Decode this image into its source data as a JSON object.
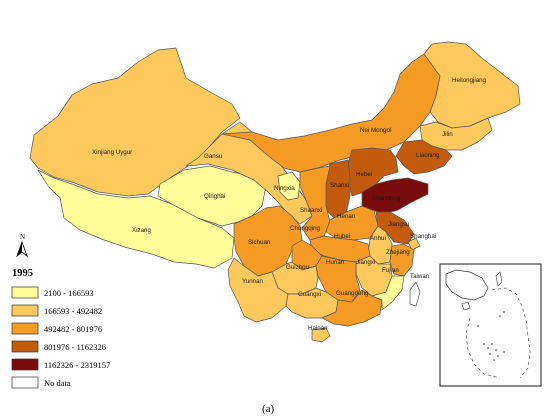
{
  "year": "1995",
  "caption": "(a)",
  "north_label": "N",
  "legend": [
    {
      "label": "2100 - 166593",
      "color": "#ffff99"
    },
    {
      "label": "166593 - 492482",
      "color": "#fdc95c"
    },
    {
      "label": "492482 - 801976",
      "color": "#f59a25"
    },
    {
      "label": "801976 - 1162326",
      "color": "#c45a0c"
    },
    {
      "label": "1162326 - 2319157",
      "color": "#7a0b0b"
    },
    {
      "label": "No data",
      "color": "#ffffff"
    }
  ],
  "provinces": [
    {
      "id": "xinjiang",
      "label": "Xinjiang Uygur",
      "class": 1
    },
    {
      "id": "xizang",
      "label": "Xizang",
      "class": 0
    },
    {
      "id": "qinghai",
      "label": "Qinghai",
      "class": 0
    },
    {
      "id": "gansu",
      "label": "Gansu",
      "class": 1
    },
    {
      "id": "neimongol",
      "label": "Nei Mongol",
      "class": 2
    },
    {
      "id": "heilongjiang",
      "label": "Heilongjiang",
      "class": 1
    },
    {
      "id": "jilin",
      "label": "Jilin",
      "class": 1
    },
    {
      "id": "liaoning",
      "label": "Liaoning",
      "class": 3
    },
    {
      "id": "hebei",
      "label": "Hebei",
      "class": 3
    },
    {
      "id": "shanxi",
      "label": "Shanxi",
      "class": 3
    },
    {
      "id": "ningxia",
      "label": "Ningxia",
      "class": 0
    },
    {
      "id": "shaanxi",
      "label": "Shaanxi",
      "class": 2
    },
    {
      "id": "henan",
      "label": "Henan",
      "class": 2
    },
    {
      "id": "shandong",
      "label": "Shandong",
      "class": 4
    },
    {
      "id": "jiangsu",
      "label": "Jiangsu",
      "class": 3
    },
    {
      "id": "shanghai",
      "label": "Shanghai",
      "class": 1
    },
    {
      "id": "anhui",
      "label": "Anhui",
      "class": 1
    },
    {
      "id": "hubei",
      "label": "Hubei",
      "class": 2
    },
    {
      "id": "sichuan",
      "label": "Sichuan",
      "class": 2
    },
    {
      "id": "chongqing",
      "label": "Chongqing",
      "class": 2
    },
    {
      "id": "zhejiang",
      "label": "Zhejiang",
      "class": 2
    },
    {
      "id": "jiangxi",
      "label": "Jiangxi",
      "class": 1
    },
    {
      "id": "hunan",
      "label": "Hunan",
      "class": 2
    },
    {
      "id": "guizhou",
      "label": "Guizhou",
      "class": 1
    },
    {
      "id": "yunnan",
      "label": "Yunnan",
      "class": 1
    },
    {
      "id": "guangxi",
      "label": "Guangxi",
      "class": 1
    },
    {
      "id": "guangdong",
      "label": "Guangdong",
      "class": 2
    },
    {
      "id": "fujian",
      "label": "Fujian",
      "class": 0
    },
    {
      "id": "hainan",
      "label": "Hainan",
      "class": 1
    },
    {
      "id": "taiwan",
      "label": "Taiwan",
      "class": 5
    }
  ]
}
